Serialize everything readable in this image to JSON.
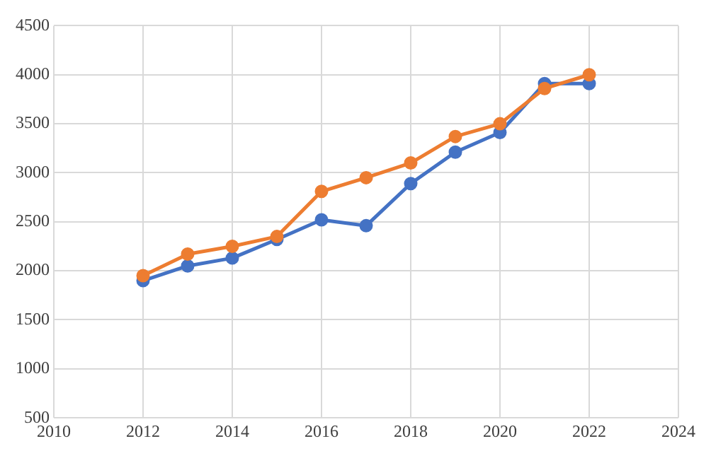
{
  "chart_data": {
    "type": "line",
    "x": [
      2012,
      2013,
      2014,
      2015,
      2016,
      2017,
      2018,
      2019,
      2020,
      2021,
      2022
    ],
    "series": [
      {
        "color": "#4472c4",
        "values": [
          1900,
          2050,
          2130,
          2320,
          2520,
          2460,
          2890,
          3210,
          3410,
          3910,
          3910
        ]
      },
      {
        "color": "#ed7d31",
        "values": [
          1950,
          2170,
          2250,
          2350,
          2810,
          2950,
          3100,
          3370,
          3500,
          3860,
          4000
        ]
      }
    ],
    "xlim": [
      2010,
      2024
    ],
    "xticks": [
      2010,
      2012,
      2014,
      2016,
      2018,
      2020,
      2022,
      2024
    ],
    "ylim": [
      500,
      4500
    ],
    "yticks": [
      500,
      1000,
      1500,
      2000,
      2500,
      3000,
      3500,
      4000,
      4500
    ],
    "grid": true,
    "marker": "circle",
    "line_style": "solid"
  }
}
